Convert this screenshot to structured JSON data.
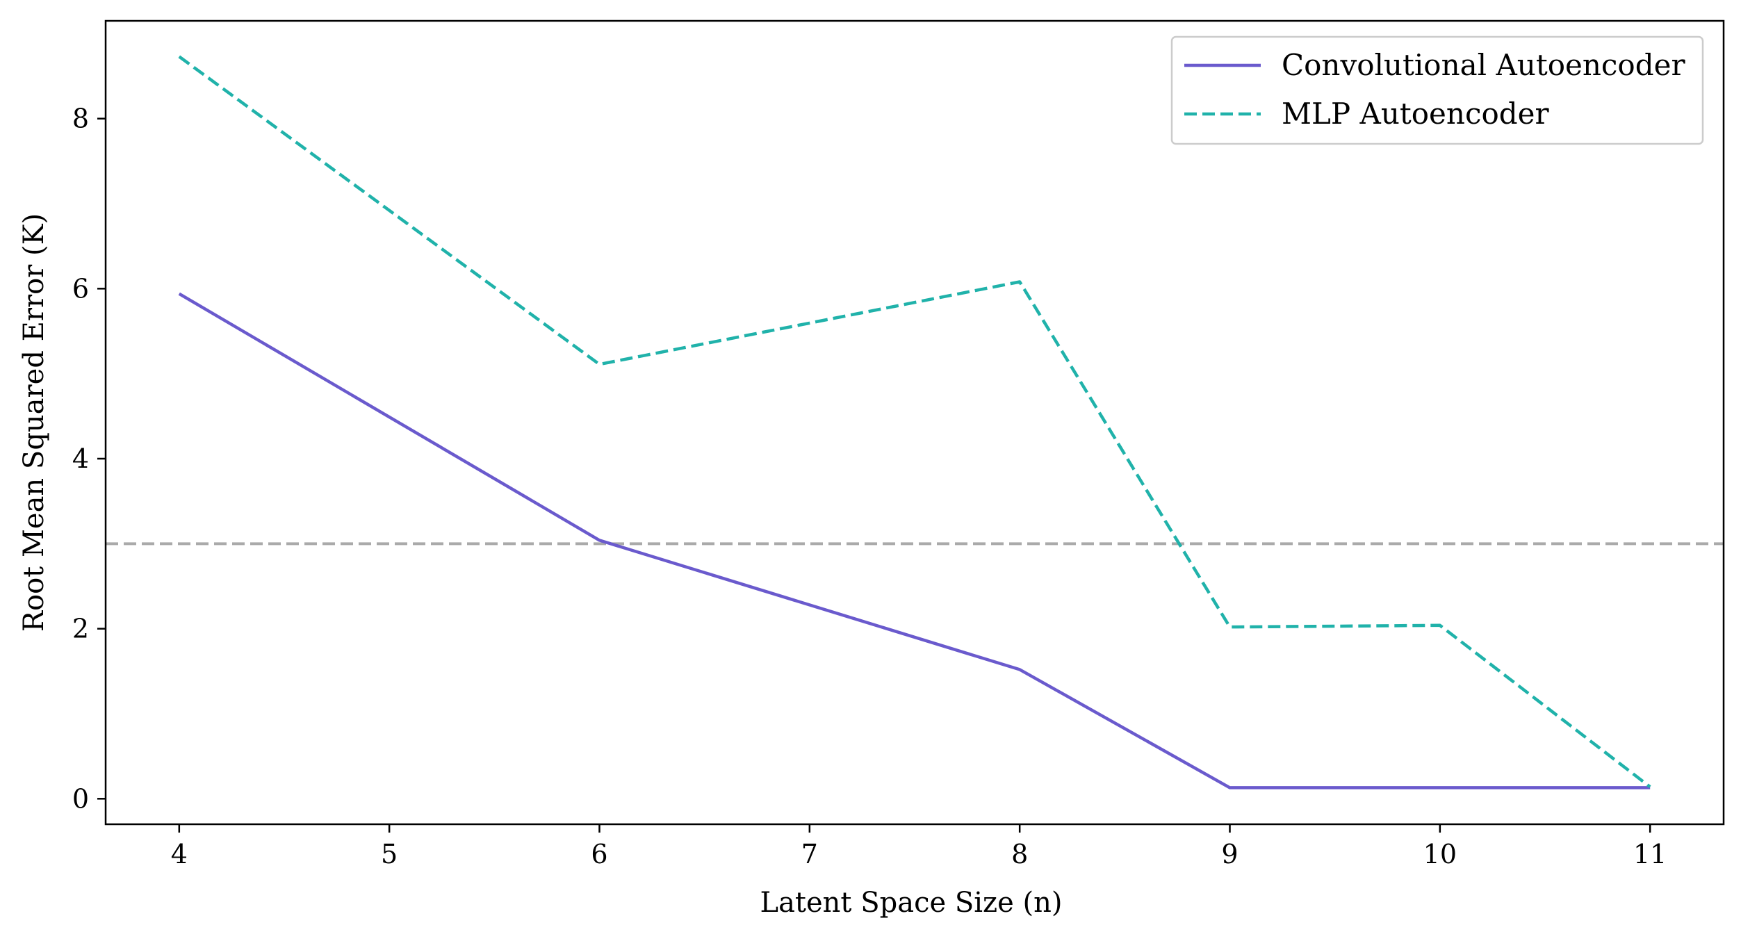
{
  "chart_data": {
    "type": "line",
    "title": "",
    "xlabel": "Latent Space Size (n)",
    "ylabel": "Root Mean Squared Error (K)",
    "x_ticks": [
      4,
      5,
      6,
      7,
      8,
      9,
      10,
      11
    ],
    "y_ticks": [
      0,
      2,
      4,
      6,
      8
    ],
    "xlim": [
      3.65,
      11.35
    ],
    "ylim": [
      -0.3,
      9.15
    ],
    "grid": false,
    "legend_position": "top-right",
    "reference_line": {
      "y": 3.0,
      "color": "#aaaaaa",
      "style": "dashed"
    },
    "series": [
      {
        "name": "Convolutional Autoencoder",
        "color": "#6a5acd",
        "style": "solid",
        "x": [
          4,
          6,
          8,
          9,
          10,
          11
        ],
        "y": [
          5.94,
          3.04,
          1.52,
          0.13,
          0.13,
          0.13
        ]
      },
      {
        "name": "MLP Autoencoder",
        "color": "#20b2aa",
        "style": "dashed",
        "x": [
          4,
          6,
          8,
          9,
          10,
          11
        ],
        "y": [
          8.73,
          5.11,
          6.08,
          2.02,
          2.04,
          0.14
        ]
      }
    ]
  }
}
